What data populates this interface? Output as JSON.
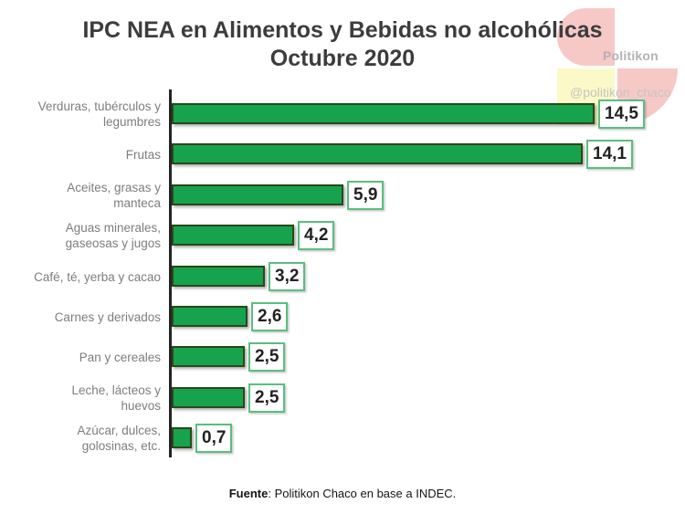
{
  "title": {
    "line1": "IPC NEA en Alimentos y Bebidas no alcohólicas",
    "line2": "Octubre 2020"
  },
  "watermark": {
    "brand": "Politikon",
    "handle": "@politikon_chaco",
    "pink_color": "#f7c9c6",
    "yellow_color": "#fbf9c8"
  },
  "chart_data": {
    "type": "bar",
    "orientation": "horizontal",
    "title": "IPC NEA en Alimentos y Bebidas no alcohólicas Octubre 2020",
    "categories": [
      "Verduras, tubérculos y legumbres",
      "Frutas",
      "Aceites, grasas y manteca",
      "Aguas minerales, gaseosas y jugos",
      "Café, té, yerba y cacao",
      "Carnes y derivados",
      "Pan y cereales",
      "Leche, lácteos y huevos",
      "Azúcar, dulces, golosinas, etc."
    ],
    "category_lines": [
      [
        "Verduras, tubérculos y",
        "legumbres"
      ],
      [
        "Frutas"
      ],
      [
        "Aceites, grasas y",
        "manteca"
      ],
      [
        "Aguas minerales,",
        "gaseosas y jugos"
      ],
      [
        "Café, té, yerba y cacao"
      ],
      [
        "Carnes y derivados"
      ],
      [
        "Pan y cereales"
      ],
      [
        "Leche, lácteos y",
        "huevos"
      ],
      [
        "Azúcar, dulces,",
        "golosinas, etc."
      ]
    ],
    "values": [
      14.5,
      14.1,
      5.9,
      4.2,
      3.2,
      2.6,
      2.5,
      2.5,
      0.7
    ],
    "value_labels": [
      "14,5",
      "14,1",
      "5,9",
      "4,2",
      "3,2",
      "2,6",
      "2,5",
      "2,5",
      "0,7"
    ],
    "xlim": [
      0,
      16
    ],
    "x_axis_visible": false,
    "grid": false,
    "legend": false,
    "bar_color": "#17a34e",
    "bar_border_color": "#2b4718",
    "value_box_border_color": "#5bbd80"
  },
  "footer": {
    "label": "Fuente",
    "rest": ": Politikon Chaco en base a INDEC."
  }
}
